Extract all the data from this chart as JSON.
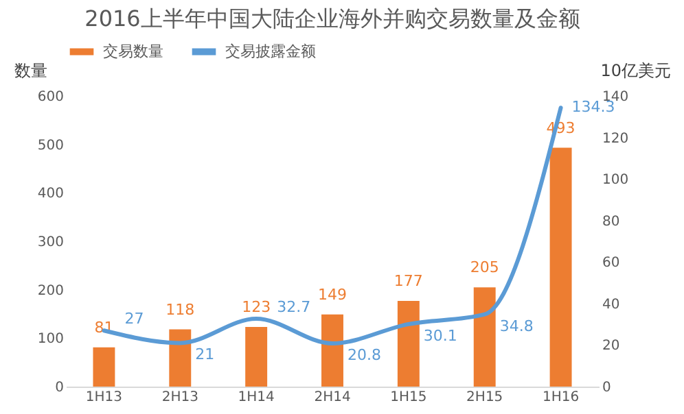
{
  "chart_data": {
    "type": "bar",
    "title": "2016上半年中国大陆企业海外并购交易数量及金额",
    "categories": [
      "1H13",
      "2H13",
      "1H14",
      "2H14",
      "1H15",
      "2H15",
      "1H16"
    ],
    "series": [
      {
        "name": "交易数量",
        "type": "bar",
        "color": "#ed7d31",
        "values": [
          81,
          118,
          123,
          149,
          177,
          205,
          493
        ]
      },
      {
        "name": "交易披露金额",
        "type": "line",
        "axis": "y2",
        "color": "#5b9bd5",
        "values": [
          27,
          21,
          32.7,
          20.8,
          30.1,
          34.8,
          134.3
        ]
      }
    ],
    "ylabel": "数量",
    "y2label": "10亿美元",
    "ylim": [
      0,
      600
    ],
    "yticks": [
      0,
      100,
      200,
      300,
      400,
      500,
      600
    ],
    "y2lim": [
      0,
      140
    ],
    "y2ticks": [
      0,
      20,
      40,
      60,
      80,
      100,
      120,
      140
    ],
    "data_labels": true,
    "legend": "top",
    "grid": false
  }
}
